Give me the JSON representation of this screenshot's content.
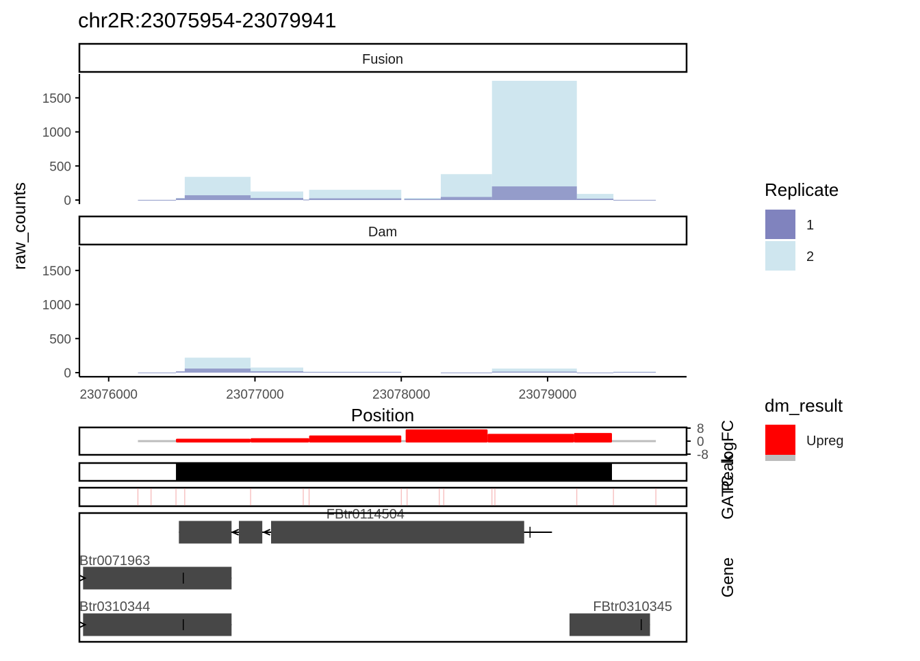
{
  "title": "chr2R:23075954-23079941",
  "colors": {
    "rep1": "#8083BE",
    "rep2": "#CFE6EF",
    "upreg": "#FF0000",
    "gene": "#474747",
    "gatc": "#F4A6A6",
    "baseline": "#BDBDBD"
  },
  "chart_data": [
    {
      "type": "bar",
      "panel": "Fusion",
      "xlabel": "Position",
      "ylabel": "raw_counts",
      "xlim": [
        23075800,
        23079950
      ],
      "ylim": [
        -60,
        1850
      ],
      "xticks": [
        23076000,
        23077000,
        23078000,
        23079000
      ],
      "xtick_labels": [
        "23076000",
        "23077000",
        "23078000",
        "23079000"
      ],
      "yticks": [
        0,
        500,
        1000,
        1500
      ],
      "ytick_labels": [
        "0",
        "500",
        "1000",
        "1500"
      ],
      "series": [
        {
          "name": "1",
          "bins": [
            {
              "start": 23076200,
              "end": 23076460,
              "value": 2
            },
            {
              "start": 23076460,
              "end": 23076520,
              "value": 25
            },
            {
              "start": 23076520,
              "end": 23076970,
              "value": 70
            },
            {
              "start": 23076970,
              "end": 23077330,
              "value": 30
            },
            {
              "start": 23077330,
              "end": 23077370,
              "value": 5
            },
            {
              "start": 23077370,
              "end": 23078000,
              "value": 25
            },
            {
              "start": 23078020,
              "end": 23078270,
              "value": 15
            },
            {
              "start": 23078270,
              "end": 23078620,
              "value": 45
            },
            {
              "start": 23078620,
              "end": 23079200,
              "value": 200
            },
            {
              "start": 23079200,
              "end": 23079450,
              "value": 20
            },
            {
              "start": 23079450,
              "end": 23079740,
              "value": 2
            }
          ]
        },
        {
          "name": "2",
          "bins": [
            {
              "start": 23076200,
              "end": 23076460,
              "value": 2
            },
            {
              "start": 23076460,
              "end": 23076520,
              "value": 30
            },
            {
              "start": 23076520,
              "end": 23076970,
              "value": 340
            },
            {
              "start": 23076970,
              "end": 23077330,
              "value": 125
            },
            {
              "start": 23077330,
              "end": 23077370,
              "value": 10
            },
            {
              "start": 23077370,
              "end": 23078000,
              "value": 150
            },
            {
              "start": 23078020,
              "end": 23078270,
              "value": 30
            },
            {
              "start": 23078270,
              "end": 23078620,
              "value": 380
            },
            {
              "start": 23078620,
              "end": 23079200,
              "value": 1750
            },
            {
              "start": 23079200,
              "end": 23079450,
              "value": 90
            },
            {
              "start": 23079450,
              "end": 23079740,
              "value": 2
            }
          ]
        }
      ]
    },
    {
      "type": "bar",
      "panel": "Dam",
      "xlabel": "Position",
      "ylabel": "raw_counts",
      "xlim": [
        23075800,
        23079950
      ],
      "ylim": [
        -60,
        1850
      ],
      "series": [
        {
          "name": "1",
          "bins": [
            {
              "start": 23076200,
              "end": 23076460,
              "value": 2
            },
            {
              "start": 23076460,
              "end": 23076520,
              "value": 20
            },
            {
              "start": 23076520,
              "end": 23076970,
              "value": 60
            },
            {
              "start": 23076970,
              "end": 23077330,
              "value": 20
            },
            {
              "start": 23077330,
              "end": 23078000,
              "value": 10
            },
            {
              "start": 23078270,
              "end": 23078620,
              "value": 2
            },
            {
              "start": 23078620,
              "end": 23079200,
              "value": 15
            },
            {
              "start": 23079200,
              "end": 23079450,
              "value": 2
            },
            {
              "start": 23079450,
              "end": 23079740,
              "value": 10
            }
          ]
        },
        {
          "name": "2",
          "bins": [
            {
              "start": 23076200,
              "end": 23076460,
              "value": 2
            },
            {
              "start": 23076460,
              "end": 23076520,
              "value": 15
            },
            {
              "start": 23076520,
              "end": 23076970,
              "value": 220
            },
            {
              "start": 23076970,
              "end": 23077330,
              "value": 75
            },
            {
              "start": 23077330,
              "end": 23078000,
              "value": 15
            },
            {
              "start": 23078270,
              "end": 23078620,
              "value": 2
            },
            {
              "start": 23078620,
              "end": 23079200,
              "value": 60
            },
            {
              "start": 23079200,
              "end": 23079450,
              "value": 2
            },
            {
              "start": 23079450,
              "end": 23079740,
              "value": 15
            }
          ]
        }
      ]
    },
    {
      "type": "bar",
      "panel": "logFC",
      "ylabel": "logFC",
      "ylim": [
        -8,
        8
      ],
      "yticks": [
        8,
        0,
        -8
      ],
      "ytick_labels": [
        "8",
        "0",
        "-8"
      ],
      "baseline_range": [
        23076200,
        23079740
      ],
      "segments": [
        {
          "start": 23076460,
          "end": 23076970,
          "logFC": 1.5,
          "dm_result": "Upreg"
        },
        {
          "start": 23076970,
          "end": 23077370,
          "logFC": 1.8,
          "dm_result": "Upreg"
        },
        {
          "start": 23077370,
          "end": 23078000,
          "logFC": 3.5,
          "dm_result": "Upreg"
        },
        {
          "start": 23078030,
          "end": 23078590,
          "logFC": 7.2,
          "dm_result": "Upreg"
        },
        {
          "start": 23078590,
          "end": 23079180,
          "logFC": 4.5,
          "dm_result": "Upreg"
        },
        {
          "start": 23079180,
          "end": 23079440,
          "logFC": 5.0,
          "dm_result": "Upreg"
        }
      ]
    },
    {
      "type": "table",
      "panel": "Peak",
      "ylabel": "Peak",
      "regions": [
        {
          "start": 23076460,
          "end": 23079440
        }
      ]
    },
    {
      "type": "table",
      "panel": "GATC",
      "ylabel": "GATC",
      "sites": [
        23076200,
        23076290,
        23076460,
        23076520,
        23076970,
        23077330,
        23077370,
        23078000,
        23078040,
        23078260,
        23078290,
        23078620,
        23078640,
        23079200,
        23079450,
        23079740
      ]
    },
    {
      "type": "table",
      "panel": "Gene",
      "ylabel": "Gene",
      "transcripts": [
        {
          "label": "FBtr0114504",
          "strand": "-",
          "start": 23076480,
          "end": 23079030,
          "exons": [
            [
              23076480,
              23076840
            ],
            [
              23076890,
              23077050
            ],
            [
              23077110,
              23078840
            ]
          ],
          "mark": 23078880
        },
        {
          "label": "Btr0071963",
          "strand": "+",
          "start": 23075825,
          "end": 23076840,
          "exons": [
            [
              23075825,
              23076840
            ]
          ],
          "mark": 23076510
        },
        {
          "label": "Btr0310344",
          "strand": "+",
          "start": 23075825,
          "end": 23076840,
          "exons": [
            [
              23075825,
              23076840
            ]
          ],
          "mark": 23076510
        },
        {
          "label": "FBtr0310345",
          "strand": "+",
          "start": 23079150,
          "end": 23079700,
          "exons": [
            [
              23079150,
              23079700
            ]
          ],
          "mark": 23079640
        }
      ]
    }
  ],
  "legends": [
    {
      "title": "Replicate",
      "items": [
        {
          "label": "1",
          "color": "#8083BE"
        },
        {
          "label": "2",
          "color": "#CFE6EF"
        }
      ]
    },
    {
      "title": "dm_result",
      "items": [
        {
          "label": "Upreg",
          "color": "#FF0000"
        }
      ]
    }
  ]
}
